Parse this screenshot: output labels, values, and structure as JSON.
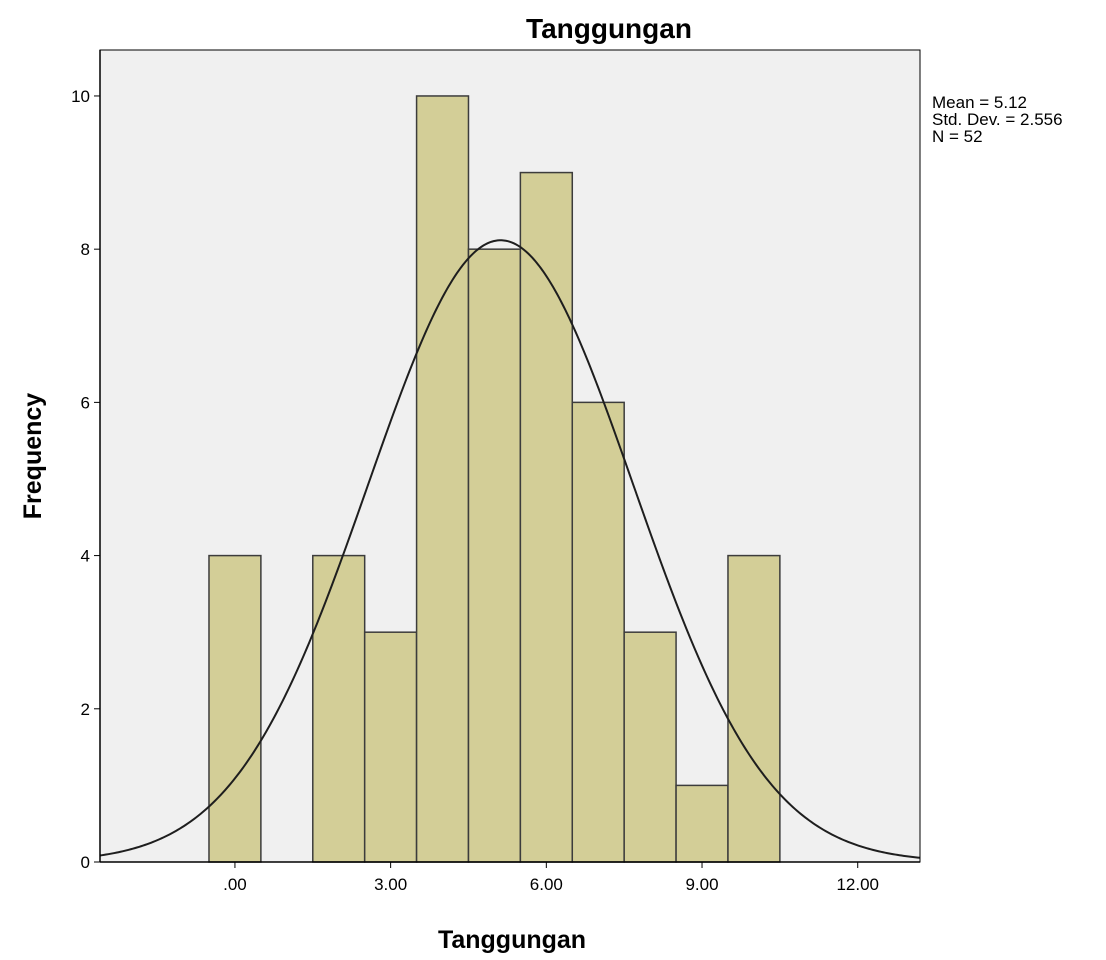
{
  "chart_data": {
    "type": "bar",
    "subtype": "histogram",
    "title": "Tanggungan",
    "xlabel": "Tanggungan",
    "ylabel": "Frequency",
    "xlim": [
      -2.6,
      13.2
    ],
    "ylim": [
      0,
      10.6
    ],
    "x_ticks": [
      0,
      3,
      6,
      9,
      12
    ],
    "x_tick_labels": [
      ".00",
      "3.00",
      "6.00",
      "9.00",
      "12.00"
    ],
    "y_ticks": [
      0,
      2,
      4,
      6,
      8,
      10
    ],
    "y_tick_labels": [
      "0",
      "2",
      "4",
      "6",
      "8",
      "10"
    ],
    "bins": [
      {
        "start": -0.5,
        "end": 0.5,
        "count": 4
      },
      {
        "start": 1.5,
        "end": 2.5,
        "count": 4
      },
      {
        "start": 2.5,
        "end": 3.5,
        "count": 3
      },
      {
        "start": 3.5,
        "end": 4.5,
        "count": 10
      },
      {
        "start": 4.5,
        "end": 5.5,
        "count": 8
      },
      {
        "start": 5.5,
        "end": 6.5,
        "count": 9
      },
      {
        "start": 6.5,
        "end": 7.5,
        "count": 6
      },
      {
        "start": 7.5,
        "end": 8.5,
        "count": 3
      },
      {
        "start": 8.5,
        "end": 9.5,
        "count": 1
      },
      {
        "start": 9.5,
        "end": 10.5,
        "count": 4
      }
    ],
    "normal_curve": {
      "mean": 5.12,
      "std_dev": 2.556,
      "n": 52,
      "bin_width": 1
    },
    "stats_lines": [
      "Mean = 5.12",
      "Std. Dev. = 2.556",
      "N = 52"
    ],
    "grid": false,
    "colors": {
      "plot_background": "#F0F0F0",
      "bar_fill": "#D3CE97",
      "bar_stroke": "#3C3C3C",
      "curve": "#1E1E1E"
    }
  }
}
